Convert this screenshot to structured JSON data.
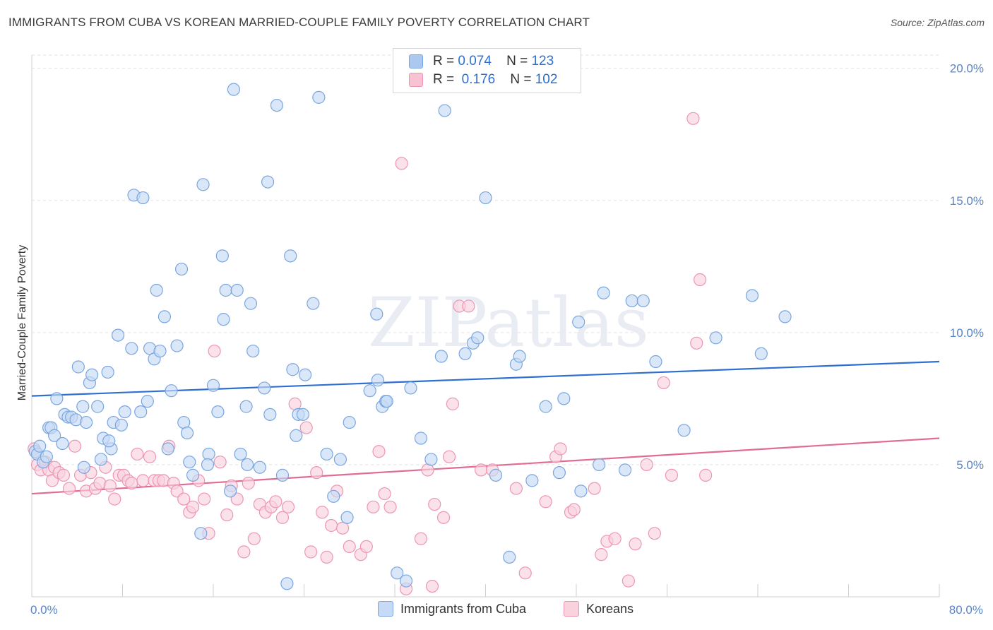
{
  "title": "IMMIGRANTS FROM CUBA VS KOREAN MARRIED-COUPLE FAMILY POVERTY CORRELATION CHART",
  "source": "Source: ZipAtlas.com",
  "watermark": "ZIPatlas",
  "legend": {
    "rows": [
      {
        "r_label": "R =",
        "r_value": "0.074",
        "n_label": "N =",
        "n_value": "123",
        "color": "#aac8f0",
        "border": "#7aa6e0"
      },
      {
        "r_label": "R =",
        "r_value": "0.176",
        "n_label": "N =",
        "n_value": "102",
        "color": "#f7c3d3",
        "border": "#ee95b3"
      }
    ]
  },
  "bottom_legend": [
    {
      "label": "Immigrants from Cuba",
      "color": "#c6daf5",
      "border": "#7aa6e0"
    },
    {
      "label": "Koreans",
      "color": "#f9d2de",
      "border": "#ee95b3"
    }
  ],
  "chart_data": {
    "type": "scatter",
    "title": "IMMIGRANTS FROM CUBA VS KOREAN MARRIED-COUPLE FAMILY POVERTY CORRELATION CHART",
    "xlabel": "",
    "ylabel": "Married-Couple Family Poverty",
    "xlim": [
      0,
      80
    ],
    "ylim": [
      0,
      20.5
    ],
    "x_tick_labels": [
      "0.0%",
      "80.0%"
    ],
    "y_ticks": [
      5,
      10,
      15,
      20
    ],
    "y_tick_labels": [
      "5.0%",
      "10.0%",
      "15.0%",
      "20.0%"
    ],
    "grid": true,
    "legend_position": "top-center",
    "series": [
      {
        "name": "Immigrants from Cuba",
        "color": "#7aa6e0",
        "fill": "#c6daf5",
        "trend": {
          "x": [
            0,
            80
          ],
          "y": [
            7.6,
            8.9
          ],
          "color": "#2f6fd0"
        },
        "points": [
          [
            0.3,
            5.5
          ],
          [
            0.5,
            5.4
          ],
          [
            0.7,
            5.7
          ],
          [
            1.0,
            5.1
          ],
          [
            1.3,
            5.3
          ],
          [
            1.5,
            6.4
          ],
          [
            1.7,
            6.4
          ],
          [
            2.0,
            6.1
          ],
          [
            2.2,
            7.5
          ],
          [
            2.7,
            5.8
          ],
          [
            2.9,
            6.9
          ],
          [
            3.2,
            6.8
          ],
          [
            3.5,
            6.8
          ],
          [
            3.9,
            6.7
          ],
          [
            4.1,
            8.7
          ],
          [
            4.5,
            7.2
          ],
          [
            4.8,
            6.6
          ],
          [
            5.1,
            8.1
          ],
          [
            5.3,
            8.4
          ],
          [
            5.8,
            7.2
          ],
          [
            6.1,
            5.2
          ],
          [
            6.3,
            6.0
          ],
          [
            6.7,
            8.5
          ],
          [
            7.0,
            5.6
          ],
          [
            7.2,
            6.6
          ],
          [
            7.6,
            9.9
          ],
          [
            7.9,
            6.5
          ],
          [
            8.2,
            7.0
          ],
          [
            8.8,
            9.4
          ],
          [
            9.6,
            7.0
          ],
          [
            9.0,
            15.2
          ],
          [
            9.8,
            15.1
          ],
          [
            10.2,
            7.4
          ],
          [
            10.4,
            9.4
          ],
          [
            10.8,
            9.0
          ],
          [
            11.0,
            11.6
          ],
          [
            11.3,
            9.3
          ],
          [
            11.7,
            10.6
          ],
          [
            12.0,
            5.6
          ],
          [
            12.3,
            7.8
          ],
          [
            12.8,
            9.5
          ],
          [
            13.2,
            12.4
          ],
          [
            13.4,
            6.6
          ],
          [
            13.7,
            6.2
          ],
          [
            13.9,
            5.1
          ],
          [
            14.2,
            4.6
          ],
          [
            14.9,
            2.4
          ],
          [
            15.1,
            15.6
          ],
          [
            15.6,
            5.4
          ],
          [
            15.5,
            5.0
          ],
          [
            16.0,
            8.0
          ],
          [
            16.4,
            7.0
          ],
          [
            16.8,
            12.9
          ],
          [
            16.9,
            10.5
          ],
          [
            17.1,
            11.6
          ],
          [
            17.5,
            4.0
          ],
          [
            17.8,
            19.2
          ],
          [
            18.1,
            11.6
          ],
          [
            18.4,
            5.4
          ],
          [
            18.9,
            7.2
          ],
          [
            19.0,
            5.0
          ],
          [
            19.3,
            11.1
          ],
          [
            19.5,
            9.3
          ],
          [
            20.1,
            4.9
          ],
          [
            20.5,
            7.9
          ],
          [
            20.8,
            15.7
          ],
          [
            21.0,
            6.9
          ],
          [
            21.6,
            18.6
          ],
          [
            22.1,
            4.6
          ],
          [
            22.5,
            0.5
          ],
          [
            22.8,
            12.9
          ],
          [
            23.0,
            8.6
          ],
          [
            23.3,
            6.1
          ],
          [
            23.5,
            6.9
          ],
          [
            23.9,
            6.9
          ],
          [
            24.1,
            8.4
          ],
          [
            24.8,
            11.1
          ],
          [
            25.3,
            18.9
          ],
          [
            26.0,
            5.4
          ],
          [
            26.6,
            3.8
          ],
          [
            27.2,
            5.2
          ],
          [
            27.8,
            3.0
          ],
          [
            28.0,
            6.6
          ],
          [
            29.8,
            7.8
          ],
          [
            30.4,
            10.7
          ],
          [
            30.5,
            8.2
          ],
          [
            30.9,
            7.2
          ],
          [
            31.2,
            7.4
          ],
          [
            31.3,
            7.4
          ],
          [
            32.2,
            0.9
          ],
          [
            33.0,
            0.6
          ],
          [
            33.4,
            7.9
          ],
          [
            34.3,
            6.0
          ],
          [
            35.2,
            5.2
          ],
          [
            36.1,
            9.1
          ],
          [
            36.4,
            18.4
          ],
          [
            38.2,
            9.2
          ],
          [
            38.9,
            9.6
          ],
          [
            39.3,
            9.8
          ],
          [
            40.0,
            15.1
          ],
          [
            40.9,
            4.6
          ],
          [
            42.1,
            1.5
          ],
          [
            42.7,
            8.8
          ],
          [
            43.0,
            9.1
          ],
          [
            44.1,
            4.4
          ],
          [
            45.3,
            7.2
          ],
          [
            46.5,
            4.7
          ],
          [
            46.9,
            7.5
          ],
          [
            48.2,
            10.4
          ],
          [
            48.4,
            4.0
          ],
          [
            50.0,
            5.0
          ],
          [
            50.4,
            11.5
          ],
          [
            52.3,
            4.8
          ],
          [
            52.9,
            11.2
          ],
          [
            53.9,
            11.2
          ],
          [
            55.0,
            8.9
          ],
          [
            57.5,
            6.3
          ],
          [
            60.3,
            9.8
          ],
          [
            63.5,
            11.4
          ],
          [
            64.3,
            9.2
          ],
          [
            66.4,
            10.6
          ],
          [
            6.8,
            5.9
          ],
          [
            4.6,
            4.9
          ]
        ]
      },
      {
        "name": "Koreans",
        "color": "#ee95b3",
        "fill": "#f9d2de",
        "trend": {
          "x": [
            0,
            80
          ],
          "y": [
            3.9,
            6.0
          ],
          "color": "#e06b95"
        },
        "points": [
          [
            0.2,
            5.6
          ],
          [
            0.5,
            5.0
          ],
          [
            0.8,
            4.8
          ],
          [
            1.2,
            5.1
          ],
          [
            1.5,
            4.8
          ],
          [
            1.8,
            4.4
          ],
          [
            2.0,
            4.9
          ],
          [
            2.4,
            4.7
          ],
          [
            2.8,
            4.6
          ],
          [
            3.3,
            4.1
          ],
          [
            3.8,
            5.7
          ],
          [
            4.3,
            4.6
          ],
          [
            4.8,
            4.0
          ],
          [
            5.2,
            4.7
          ],
          [
            5.6,
            4.1
          ],
          [
            6.0,
            4.3
          ],
          [
            6.5,
            4.9
          ],
          [
            6.9,
            4.2
          ],
          [
            7.3,
            3.7
          ],
          [
            7.7,
            4.6
          ],
          [
            8.1,
            4.6
          ],
          [
            8.5,
            4.4
          ],
          [
            8.8,
            4.3
          ],
          [
            9.3,
            5.4
          ],
          [
            9.8,
            4.4
          ],
          [
            10.4,
            5.3
          ],
          [
            10.8,
            4.4
          ],
          [
            11.2,
            4.4
          ],
          [
            11.6,
            4.4
          ],
          [
            12.1,
            5.7
          ],
          [
            12.5,
            4.3
          ],
          [
            12.8,
            4.0
          ],
          [
            13.4,
            3.7
          ],
          [
            13.9,
            3.2
          ],
          [
            14.2,
            3.4
          ],
          [
            14.7,
            4.4
          ],
          [
            15.2,
            3.7
          ],
          [
            15.6,
            2.4
          ],
          [
            16.1,
            9.3
          ],
          [
            16.6,
            5.1
          ],
          [
            17.2,
            3.1
          ],
          [
            17.6,
            4.2
          ],
          [
            18.1,
            3.7
          ],
          [
            18.7,
            1.7
          ],
          [
            19.1,
            4.3
          ],
          [
            19.6,
            2.2
          ],
          [
            20.1,
            3.5
          ],
          [
            20.6,
            3.2
          ],
          [
            21.1,
            3.4
          ],
          [
            21.5,
            3.6
          ],
          [
            22.1,
            3.0
          ],
          [
            22.6,
            3.4
          ],
          [
            23.2,
            7.3
          ],
          [
            24.2,
            6.4
          ],
          [
            24.6,
            1.7
          ],
          [
            25.1,
            4.7
          ],
          [
            25.6,
            3.2
          ],
          [
            26.0,
            1.5
          ],
          [
            26.4,
            2.7
          ],
          [
            26.9,
            4.0
          ],
          [
            27.4,
            2.6
          ],
          [
            28.0,
            1.9
          ],
          [
            29.0,
            1.6
          ],
          [
            29.5,
            1.9
          ],
          [
            30.1,
            3.4
          ],
          [
            30.6,
            5.5
          ],
          [
            31.1,
            3.9
          ],
          [
            31.6,
            3.4
          ],
          [
            32.6,
            16.4
          ],
          [
            33.0,
            0.3
          ],
          [
            34.3,
            2.2
          ],
          [
            34.9,
            4.8
          ],
          [
            35.3,
            0.4
          ],
          [
            35.5,
            3.5
          ],
          [
            36.3,
            3.0
          ],
          [
            36.8,
            5.3
          ],
          [
            37.1,
            7.3
          ],
          [
            37.7,
            11.0
          ],
          [
            38.5,
            11.0
          ],
          [
            39.6,
            4.8
          ],
          [
            40.6,
            4.8
          ],
          [
            42.7,
            4.1
          ],
          [
            43.5,
            0.9
          ],
          [
            45.3,
            3.6
          ],
          [
            46.2,
            5.3
          ],
          [
            46.6,
            5.6
          ],
          [
            47.5,
            3.2
          ],
          [
            47.8,
            3.3
          ],
          [
            49.6,
            4.1
          ],
          [
            50.2,
            1.6
          ],
          [
            50.7,
            2.1
          ],
          [
            51.4,
            2.2
          ],
          [
            52.6,
            0.6
          ],
          [
            53.2,
            2.0
          ],
          [
            54.2,
            5.0
          ],
          [
            54.9,
            2.4
          ],
          [
            55.7,
            8.1
          ],
          [
            56.4,
            4.6
          ],
          [
            58.3,
            18.1
          ],
          [
            58.6,
            9.6
          ],
          [
            58.9,
            12.0
          ],
          [
            59.4,
            4.6
          ]
        ]
      }
    ]
  }
}
